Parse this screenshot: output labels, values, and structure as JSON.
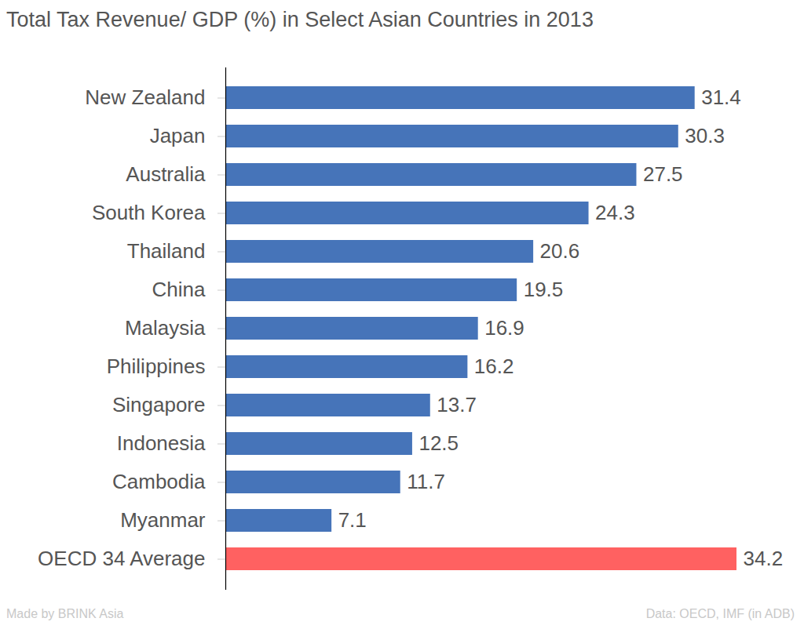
{
  "chart_data": {
    "type": "bar",
    "orientation": "horizontal",
    "title": "Total Tax Revenue/ GDP (%) in Select Asian Countries in 2013",
    "credit": "Made by BRINK Asia",
    "source": "Data: OECD, IMF (in ADB)",
    "categories": [
      "New Zealand",
      "Japan",
      "Australia",
      "South Korea",
      "Thailand",
      "China",
      "Malaysia",
      "Philippines",
      "Singapore",
      "Indonesia",
      "Cambodia",
      "Myanmar",
      "OECD 34 Average"
    ],
    "values": [
      31.4,
      30.3,
      27.5,
      24.3,
      20.6,
      19.5,
      16.9,
      16.2,
      13.7,
      12.5,
      11.7,
      7.1,
      34.2
    ],
    "colors": [
      "#4674b9",
      "#4674b9",
      "#4674b9",
      "#4674b9",
      "#4674b9",
      "#4674b9",
      "#4674b9",
      "#4674b9",
      "#4674b9",
      "#4674b9",
      "#4674b9",
      "#4674b9",
      "#ff6161"
    ],
    "xlim": [
      0,
      34.2
    ],
    "xticks": [],
    "grid": false,
    "data_labels": true,
    "tick_labels": "y"
  }
}
